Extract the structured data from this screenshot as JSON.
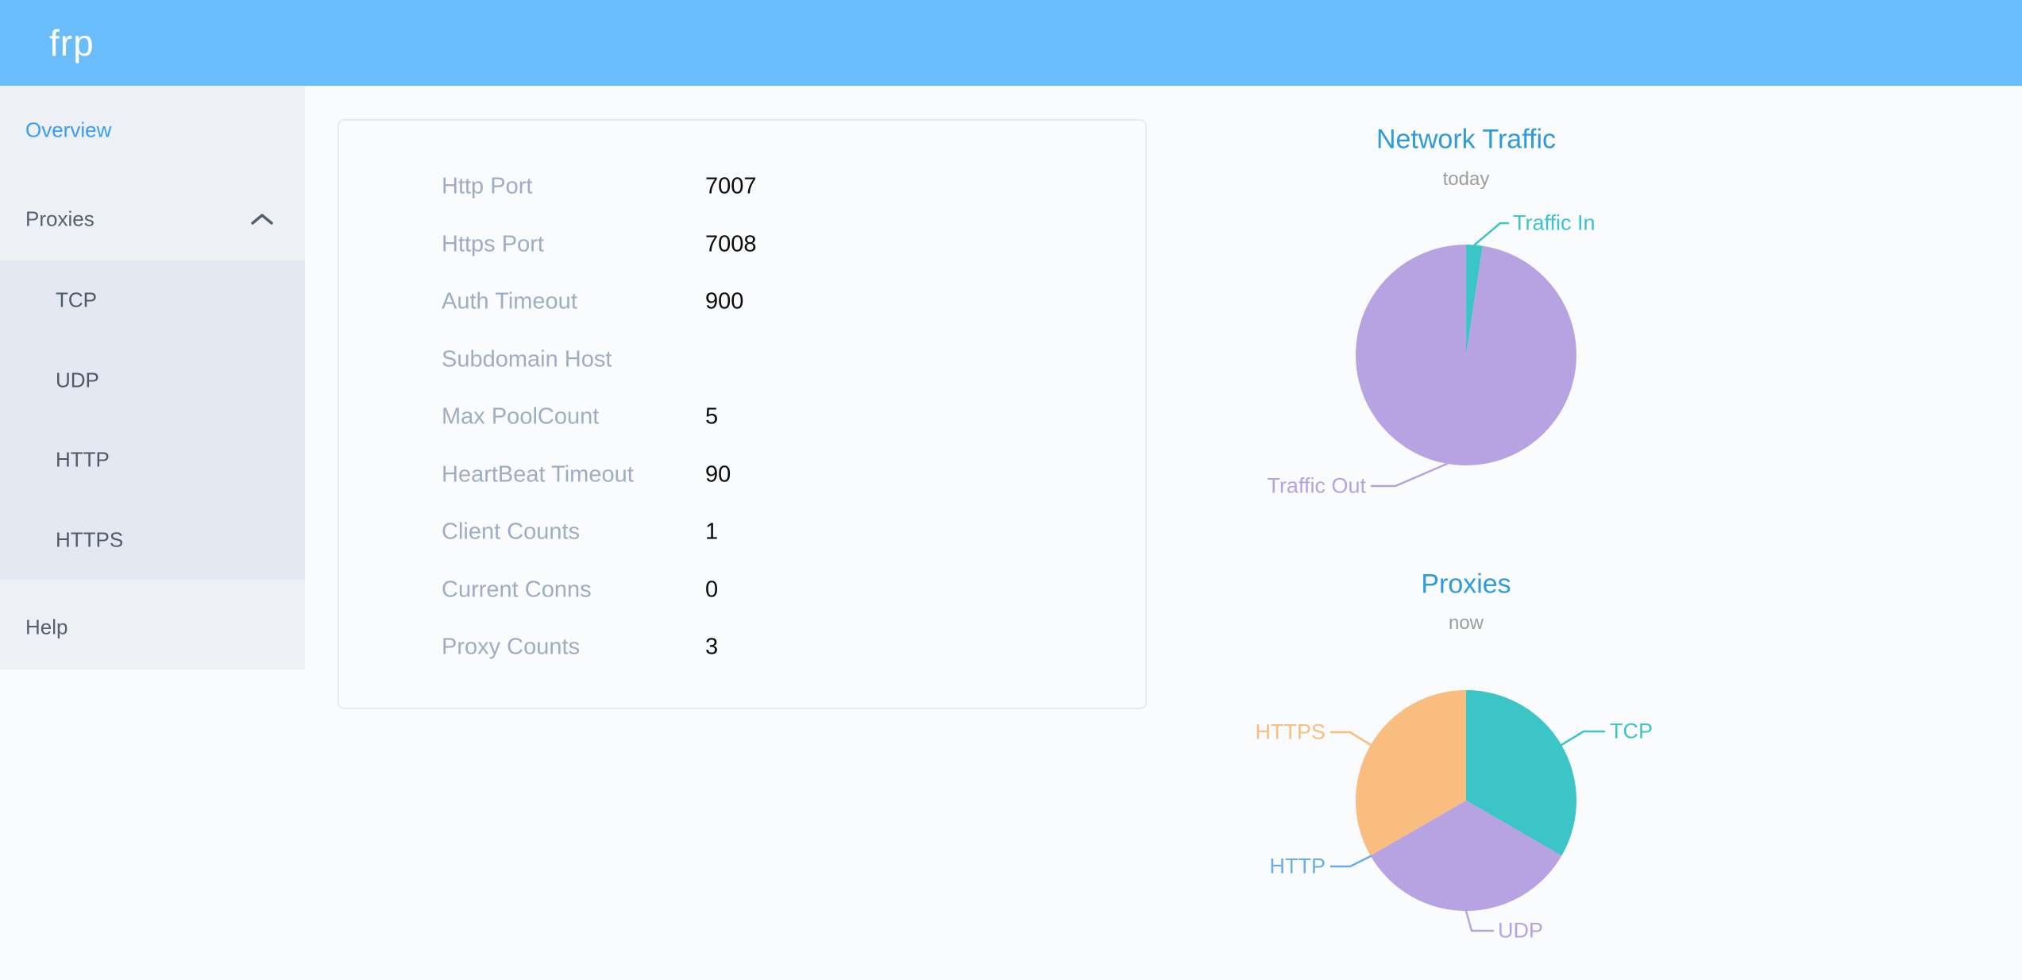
{
  "header": {
    "logo_text": "frp"
  },
  "sidebar": {
    "items": [
      {
        "label": "Overview",
        "state": "active"
      },
      {
        "label": "Proxies",
        "state": "expanded"
      },
      {
        "label": "Help",
        "state": "normal"
      }
    ],
    "proxies_submenu": [
      "TCP",
      "UDP",
      "HTTP",
      "HTTPS"
    ]
  },
  "server_info": {
    "rows": [
      {
        "label": "Http Port",
        "value": "7007"
      },
      {
        "label": "Https Port",
        "value": "7008"
      },
      {
        "label": "Auth Timeout",
        "value": "900"
      },
      {
        "label": "Subdomain Host",
        "value": ""
      },
      {
        "label": "Max PoolCount",
        "value": "5"
      },
      {
        "label": "HeartBeat Timeout",
        "value": "90"
      },
      {
        "label": "Client Counts",
        "value": "1"
      },
      {
        "label": "Current Conns",
        "value": "0"
      },
      {
        "label": "Proxy Counts",
        "value": "3"
      }
    ]
  },
  "chart_data": [
    {
      "id": "network-traffic",
      "type": "pie",
      "title": "Network Traffic",
      "subtitle": "today",
      "labels": [
        "Traffic In",
        "Traffic Out"
      ],
      "values": [
        2.4,
        97.6
      ],
      "values_unit": "percent-estimated-from-arc-angles",
      "colors": [
        "#3cc5c7",
        "#b7a3e1"
      ],
      "legend_position": "callout-labels"
    },
    {
      "id": "proxies-now",
      "type": "pie",
      "title": "Proxies",
      "subtitle": "now",
      "labels": [
        "TCP",
        "UDP",
        "HTTP",
        "HTTPS"
      ],
      "values": [
        1,
        1,
        0,
        1
      ],
      "values_unit": "proxy-count",
      "colors": [
        "#3cc5c7",
        "#b7a3e1",
        "#66aef0",
        "#f9bd7f"
      ],
      "legend_position": "callout-labels"
    }
  ],
  "colors": {
    "header_bg": "#6abdfb",
    "active_link": "#3a9ef0",
    "chart_title_blue": "#2f9cd9",
    "subtitle_gray": "#9d9d9d",
    "sidebar_bg": "#edf0f5",
    "submenu_bg": "#e4e8f0",
    "card_label_gray": "#9fadc3",
    "sidebar_text": "#57616e"
  }
}
